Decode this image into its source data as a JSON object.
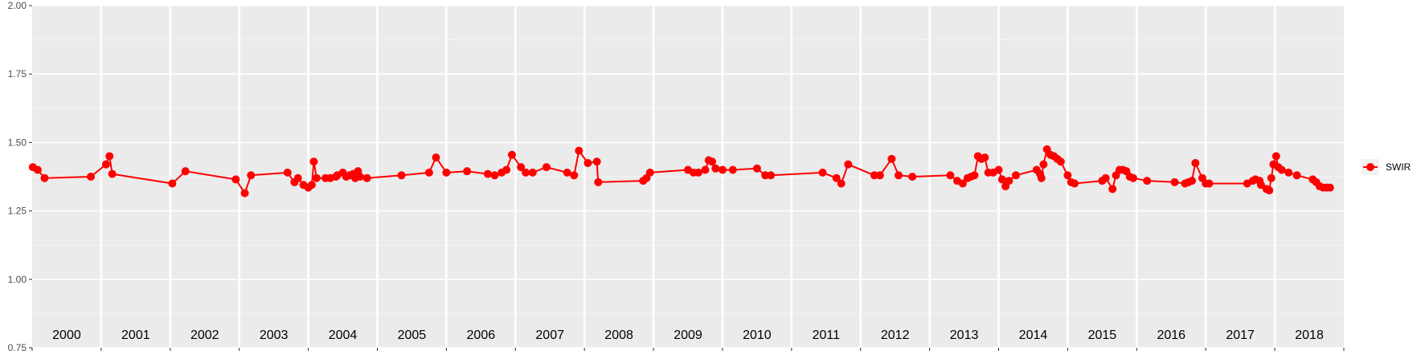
{
  "chart_data": {
    "type": "line",
    "title": "",
    "xlabel": "",
    "ylabel": "",
    "xlim": [
      2000,
      2019
    ],
    "ylim": [
      0.75,
      2.0
    ],
    "y_ticks": [
      "0.75",
      "1.00",
      "1.25",
      "1.50",
      "1.75",
      "2.00"
    ],
    "y_tick_values": [
      0.75,
      1.0,
      1.25,
      1.5,
      1.75,
      2.0
    ],
    "year_labels": [
      "2000",
      "2001",
      "2002",
      "2003",
      "2004",
      "2005",
      "2006",
      "2007",
      "2008",
      "2009",
      "2010",
      "2011",
      "2012",
      "2013",
      "2014",
      "2015",
      "2016",
      "2017",
      "2018"
    ],
    "grid": true,
    "legend_position": "right",
    "series": [
      {
        "name": "SWIR",
        "color": "#ff0000",
        "x": [
          2000.01,
          2000.08,
          2000.18,
          2000.85,
          2001.07,
          2001.12,
          2001.16,
          2002.03,
          2002.22,
          2002.95,
          2003.08,
          2003.17,
          2003.7,
          2003.8,
          2003.85,
          2003.93,
          2004.0,
          2004.05,
          2004.08,
          2004.12,
          2004.25,
          2004.32,
          2004.4,
          2004.42,
          2004.5,
          2004.55,
          2004.6,
          2004.65,
          2004.68,
          2004.72,
          2004.75,
          2004.85,
          2005.35,
          2005.75,
          2005.85,
          2006.0,
          2006.3,
          2006.6,
          2006.7,
          2006.8,
          2006.87,
          2006.95,
          2007.08,
          2007.15,
          2007.25,
          2007.45,
          2007.75,
          2007.85,
          2007.92,
          2008.05,
          2008.18,
          2008.2,
          2008.85,
          2008.9,
          2008.95,
          2009.5,
          2009.58,
          2009.65,
          2009.75,
          2009.8,
          2009.85,
          2009.9,
          2010.0,
          2010.15,
          2010.5,
          2010.62,
          2010.7,
          2011.45,
          2011.65,
          2011.72,
          2011.82,
          2012.2,
          2012.28,
          2012.45,
          2012.55,
          2012.75,
          2013.3,
          2013.4,
          2013.48,
          2013.55,
          2013.6,
          2013.65,
          2013.7,
          2013.75,
          2013.8,
          2013.85,
          2013.92,
          2014.0,
          2014.05,
          2014.1,
          2014.15,
          2014.25,
          2014.55,
          2014.6,
          2014.62,
          2014.65,
          2014.7,
          2014.75,
          2014.8,
          2014.85,
          2014.9,
          2015.0,
          2015.05,
          2015.1,
          2015.5,
          2015.55,
          2015.65,
          2015.7,
          2015.75,
          2015.8,
          2015.85,
          2015.9,
          2015.95,
          2016.15,
          2016.55,
          2016.7,
          2016.75,
          2016.8,
          2016.85,
          2016.95,
          2017.0,
          2017.05,
          2017.6,
          2017.68,
          2017.72,
          2017.78,
          2017.8,
          2017.88,
          2017.92,
          2017.95,
          2017.98,
          2018.02,
          2018.05,
          2018.1,
          2018.2,
          2018.32,
          2018.55,
          2018.6,
          2018.65,
          2018.7,
          2018.75,
          2018.8
        ],
        "y": [
          1.41,
          1.4,
          1.37,
          1.375,
          1.42,
          1.45,
          1.385,
          1.35,
          1.395,
          1.365,
          1.315,
          1.38,
          1.39,
          1.355,
          1.37,
          1.345,
          1.335,
          1.345,
          1.43,
          1.37,
          1.37,
          1.37,
          1.375,
          1.38,
          1.39,
          1.375,
          1.38,
          1.385,
          1.37,
          1.395,
          1.375,
          1.37,
          1.38,
          1.39,
          1.445,
          1.39,
          1.395,
          1.385,
          1.38,
          1.39,
          1.4,
          1.455,
          1.41,
          1.39,
          1.39,
          1.41,
          1.39,
          1.38,
          1.47,
          1.425,
          1.43,
          1.355,
          1.36,
          1.37,
          1.39,
          1.4,
          1.39,
          1.39,
          1.4,
          1.435,
          1.43,
          1.405,
          1.4,
          1.4,
          1.405,
          1.38,
          1.38,
          1.39,
          1.37,
          1.35,
          1.42,
          1.38,
          1.38,
          1.44,
          1.38,
          1.375,
          1.38,
          1.36,
          1.35,
          1.37,
          1.375,
          1.38,
          1.45,
          1.44,
          1.445,
          1.39,
          1.39,
          1.4,
          1.365,
          1.34,
          1.36,
          1.38,
          1.4,
          1.385,
          1.37,
          1.42,
          1.475,
          1.455,
          1.45,
          1.44,
          1.43,
          1.38,
          1.355,
          1.35,
          1.36,
          1.37,
          1.33,
          1.38,
          1.4,
          1.4,
          1.395,
          1.375,
          1.37,
          1.36,
          1.355,
          1.35,
          1.355,
          1.36,
          1.425,
          1.37,
          1.35,
          1.35,
          1.35,
          1.36,
          1.365,
          1.36,
          1.345,
          1.33,
          1.325,
          1.37,
          1.42,
          1.45,
          1.41,
          1.4,
          1.39,
          1.38,
          1.365,
          1.355,
          1.34,
          1.335,
          1.335,
          1.335
        ],
        "note": "",
        "marker": "circle"
      }
    ]
  }
}
